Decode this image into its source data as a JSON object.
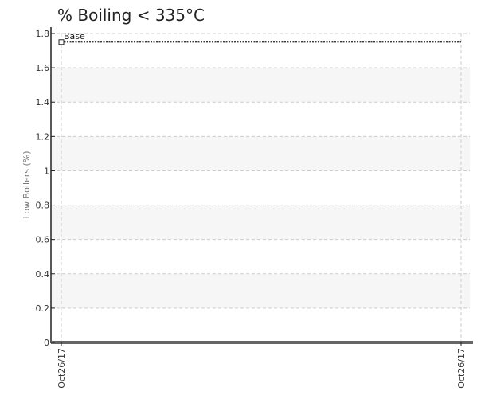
{
  "chart_data": {
    "type": "line",
    "title": "% Boiling < 335°C",
    "xlabel": "",
    "ylabel": "Low Boilers (%)",
    "ylim": [
      0,
      1.8
    ],
    "yticks": [
      {
        "value": 0,
        "label": "0"
      },
      {
        "value": 0.2,
        "label": "0.2"
      },
      {
        "value": 0.4,
        "label": "0.4"
      },
      {
        "value": 0.6,
        "label": "0.6"
      },
      {
        "value": 0.8,
        "label": "0.8"
      },
      {
        "value": 1.0,
        "label": "1"
      },
      {
        "value": 1.2,
        "label": "1.2"
      },
      {
        "value": 1.4,
        "label": "1.4"
      },
      {
        "value": 1.6,
        "label": "1.6"
      },
      {
        "value": 1.8,
        "label": "1.8"
      }
    ],
    "x": [
      "Oct26/17",
      "Oct26/17"
    ],
    "grid": true,
    "series": [
      {
        "name": "Base",
        "values": [
          1.75,
          1.75
        ],
        "style": "dotted",
        "color": "#222222",
        "marker": "square"
      }
    ],
    "colors": {
      "band": "#f6f6f6",
      "grid": "#cccccc",
      "axis": "#222222",
      "baseline": "#666666"
    }
  }
}
